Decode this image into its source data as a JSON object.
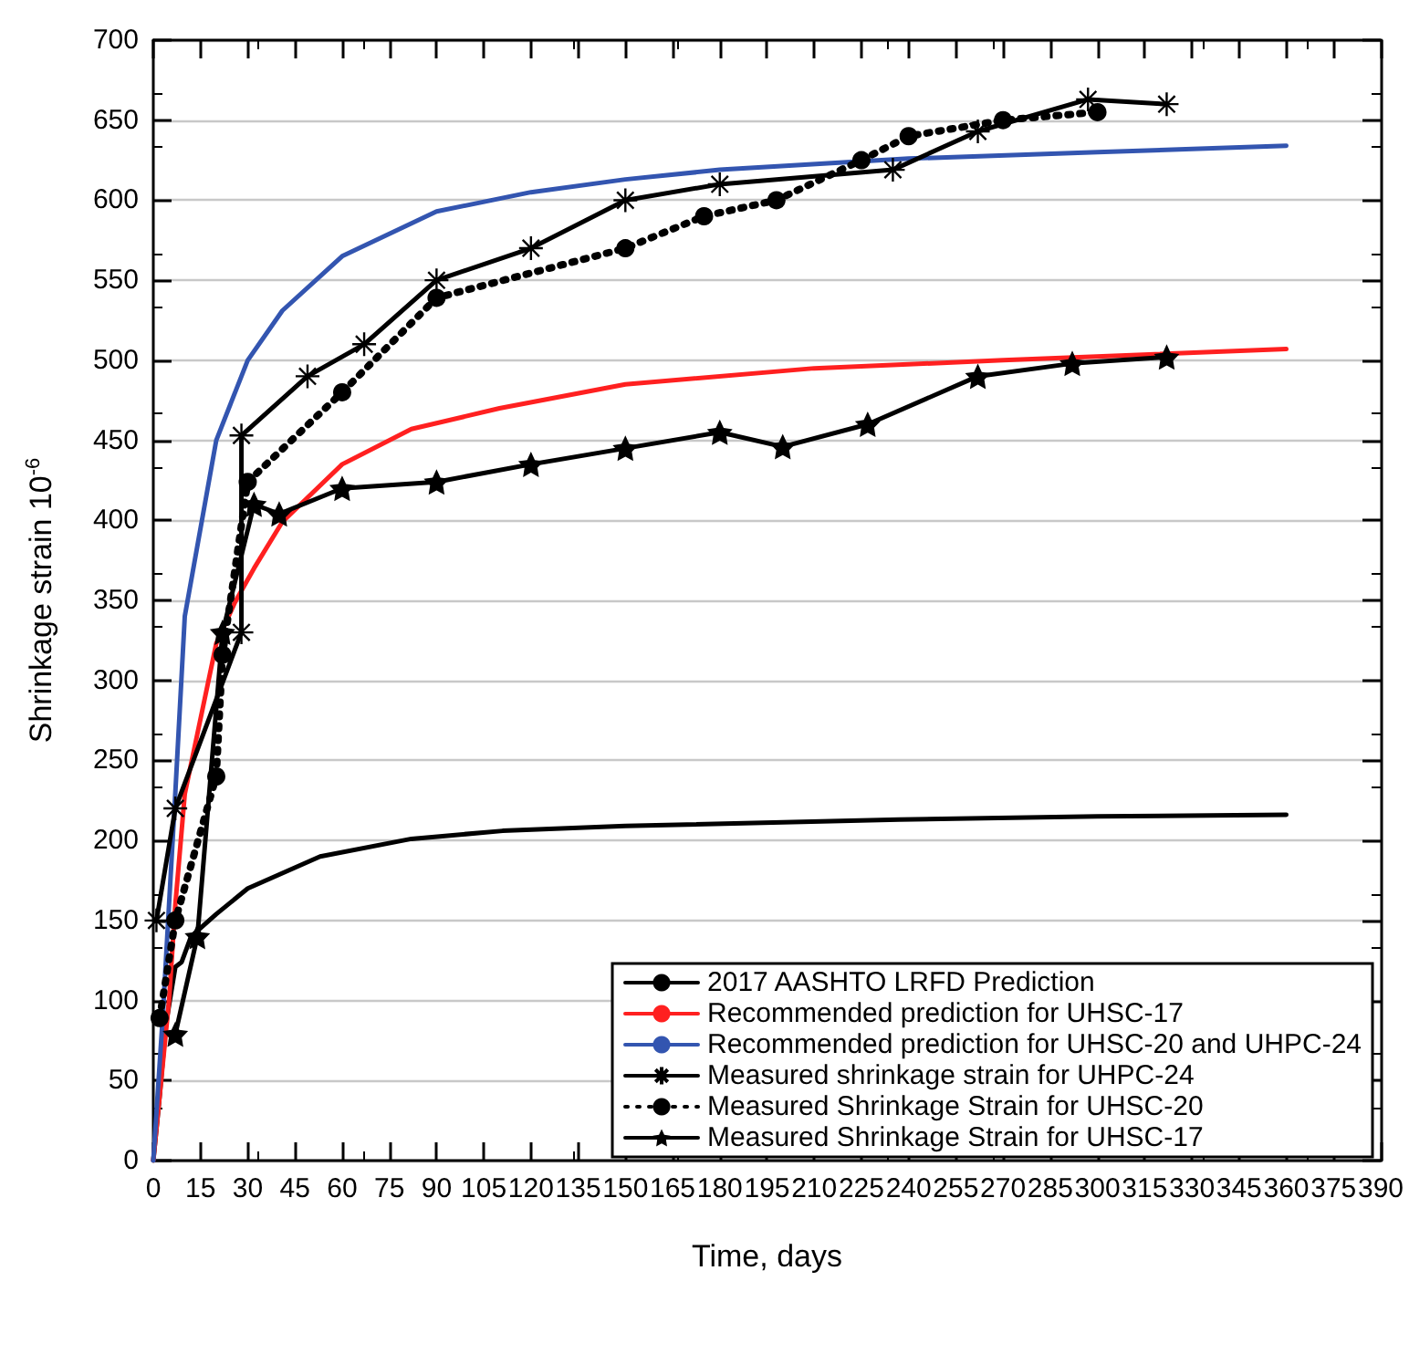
{
  "chart_data": {
    "type": "line",
    "xlabel": "Time, days",
    "ylabel": "Shrinkage strain 10$^{-6}$",
    "xlim": [
      0,
      390
    ],
    "xticks": [
      0,
      15,
      30,
      45,
      60,
      75,
      90,
      105,
      120,
      135,
      150,
      165,
      180,
      195,
      210,
      225,
      240,
      255,
      270,
      285,
      300,
      315,
      330,
      345,
      360,
      375,
      390
    ],
    "ylim": [
      0,
      700
    ],
    "yticks": [
      0,
      50,
      100,
      150,
      200,
      250,
      300,
      350,
      400,
      450,
      500,
      550,
      600,
      650,
      700
    ],
    "grid": "y",
    "legend": "bottom right",
    "series": [
      {
        "name": "2017 AASHTO LRFD Prediction",
        "color": "#000000",
        "marker": "none",
        "line_style": "solid",
        "x": [
          0,
          2,
          4,
          7,
          9,
          12,
          20,
          30,
          53,
          82,
          111,
          150,
          237,
          300,
          360
        ],
        "values": [
          0,
          40,
          85,
          121,
          124,
          140,
          154,
          170,
          190,
          201,
          206,
          209,
          213,
          215,
          216
        ]
      },
      {
        "name": "Recommended prediction for UHSC-17",
        "color": "#ff2020",
        "marker": "none",
        "line_style": "solid",
        "x": [
          0,
          5,
          7,
          10,
          20,
          26,
          32,
          41,
          60,
          82,
          110,
          150,
          210,
          270,
          360
        ],
        "values": [
          0,
          100,
          160,
          229,
          323,
          349,
          370,
          399,
          435,
          457,
          470,
          485,
          495,
          500,
          507
        ]
      },
      {
        "name": "Recommended prediction for UHSC-20 and UHPC-24",
        "color": "#3355b0",
        "marker": "none",
        "line_style": "solid",
        "x": [
          0,
          3,
          7,
          10,
          20,
          30,
          41,
          60,
          90,
          120,
          150,
          180,
          240,
          300,
          360
        ],
        "values": [
          0,
          90,
          230,
          340,
          450,
          500,
          531,
          565,
          593,
          605,
          613,
          619,
          626,
          630,
          634
        ]
      },
      {
        "name": "Measured shrinkage strain for UHPC-24",
        "color": "#000000",
        "marker": "cross",
        "line_style": "solid",
        "x": [
          1,
          7,
          28,
          28,
          49,
          67,
          90,
          120,
          150,
          180,
          235,
          262,
          297,
          322
        ],
        "values": [
          150,
          220,
          330,
          453,
          490,
          510,
          550,
          570,
          600,
          610,
          619,
          643,
          663,
          660
        ]
      },
      {
        "name": "Measured Shrinkage Strain for UHSC-20",
        "color": "#000000",
        "marker": "circle",
        "line_style": "dotted",
        "x": [
          2,
          7,
          20,
          22,
          30,
          60,
          90,
          150,
          175,
          198,
          225,
          240,
          270,
          300
        ],
        "values": [
          89,
          150,
          240,
          316,
          424,
          480,
          539,
          570,
          590,
          600,
          625,
          640,
          650,
          655
        ]
      },
      {
        "name": "Measured Shrinkage Strain for UHSC-17",
        "color": "#000000",
        "marker": "star",
        "line_style": "solid",
        "x": [
          7,
          14,
          22,
          32,
          40,
          60,
          90,
          120,
          150,
          180,
          200,
          227,
          262,
          292,
          322
        ],
        "values": [
          79,
          140,
          330,
          410,
          404,
          420,
          424,
          435,
          445,
          455,
          446,
          460,
          490,
          498,
          502
        ]
      }
    ]
  }
}
